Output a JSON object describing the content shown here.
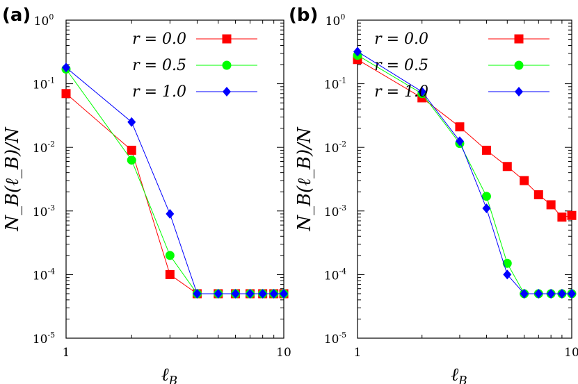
{
  "chart_data": [
    {
      "panel_label": "(a)",
      "type": "line",
      "x_scale": "log",
      "y_scale": "log",
      "xlim": [
        1,
        10
      ],
      "ylim": [
        1e-05,
        1
      ],
      "xlabel": "ℓ",
      "xlabel_sub": "B",
      "ylabel": "N_B(ℓ_B)/N",
      "x_ticks": [
        {
          "value": 1,
          "label": "1"
        },
        {
          "value": 10,
          "label": "10"
        }
      ],
      "y_ticks": [
        {
          "value": 1,
          "base": "10",
          "exp": "0"
        },
        {
          "value": 0.1,
          "base": "10",
          "exp": "-1"
        },
        {
          "value": 0.01,
          "base": "10",
          "exp": "-2"
        },
        {
          "value": 0.001,
          "base": "10",
          "exp": "-3"
        },
        {
          "value": 0.0001,
          "base": "10",
          "exp": "-4"
        },
        {
          "value": 1e-05,
          "base": "10",
          "exp": "-5"
        }
      ],
      "legend_position": "top-right",
      "series": [
        {
          "name": "r = 0.0",
          "color": "#ff0000",
          "marker": "square",
          "x": [
            1,
            2,
            3,
            4,
            5,
            6,
            7,
            8,
            9,
            10
          ],
          "y": [
            0.07,
            0.009,
            0.0001,
            5e-05,
            5e-05,
            5e-05,
            5e-05,
            5e-05,
            5e-05,
            5e-05
          ]
        },
        {
          "name": "r = 0.5",
          "color": "#00ff00",
          "marker": "circle",
          "x": [
            1,
            2,
            3,
            4,
            5,
            6,
            7,
            8,
            9,
            10
          ],
          "y": [
            0.17,
            0.0063,
            0.0002,
            5e-05,
            5e-05,
            5e-05,
            5e-05,
            5e-05,
            5e-05,
            5e-05
          ]
        },
        {
          "name": "r = 1.0",
          "color": "#0000ff",
          "marker": "diamond",
          "x": [
            1,
            2,
            3,
            4,
            5,
            6,
            7,
            8,
            9,
            10
          ],
          "y": [
            0.18,
            0.025,
            0.0009,
            5e-05,
            5e-05,
            5e-05,
            5e-05,
            5e-05,
            5e-05,
            5e-05
          ]
        }
      ]
    },
    {
      "panel_label": "(b)",
      "type": "line",
      "x_scale": "log",
      "y_scale": "log",
      "xlim": [
        1,
        10
      ],
      "ylim": [
        1e-05,
        1
      ],
      "xlabel": "ℓ",
      "xlabel_sub": "B",
      "ylabel": "N_B(ℓ_B)/N",
      "x_ticks": [
        {
          "value": 1,
          "label": "1"
        },
        {
          "value": 10,
          "label": "10"
        }
      ],
      "y_ticks": [
        {
          "value": 1,
          "base": "10",
          "exp": "0"
        },
        {
          "value": 0.1,
          "base": "10",
          "exp": "-1"
        },
        {
          "value": 0.01,
          "base": "10",
          "exp": "-2"
        },
        {
          "value": 0.001,
          "base": "10",
          "exp": "-3"
        },
        {
          "value": 0.0001,
          "base": "10",
          "exp": "-4"
        },
        {
          "value": 1e-05,
          "base": "10",
          "exp": "-5"
        }
      ],
      "legend_position": "top-right",
      "series": [
        {
          "name": "r = 0.0",
          "color": "#ff0000",
          "marker": "square",
          "x": [
            1,
            2,
            3,
            4,
            5,
            6,
            7,
            8,
            9,
            10
          ],
          "y": [
            0.24,
            0.06,
            0.021,
            0.009,
            0.005,
            0.003,
            0.0018,
            0.00125,
            0.0008,
            0.00085
          ]
        },
        {
          "name": "r = 0.5",
          "color": "#00ff00",
          "marker": "circle",
          "x": [
            1,
            2,
            3,
            4,
            5,
            6,
            7,
            8,
            9,
            10
          ],
          "y": [
            0.28,
            0.07,
            0.0115,
            0.0017,
            0.00015,
            5e-05,
            5e-05,
            5e-05,
            5e-05,
            5e-05
          ]
        },
        {
          "name": "r = 1.0",
          "color": "#0000ff",
          "marker": "diamond",
          "x": [
            1,
            2,
            3,
            4,
            5,
            6,
            7,
            8,
            9,
            10
          ],
          "y": [
            0.32,
            0.075,
            0.0125,
            0.0011,
            0.0001,
            5e-05,
            5e-05,
            5e-05,
            5e-05,
            5e-05
          ]
        }
      ]
    }
  ]
}
